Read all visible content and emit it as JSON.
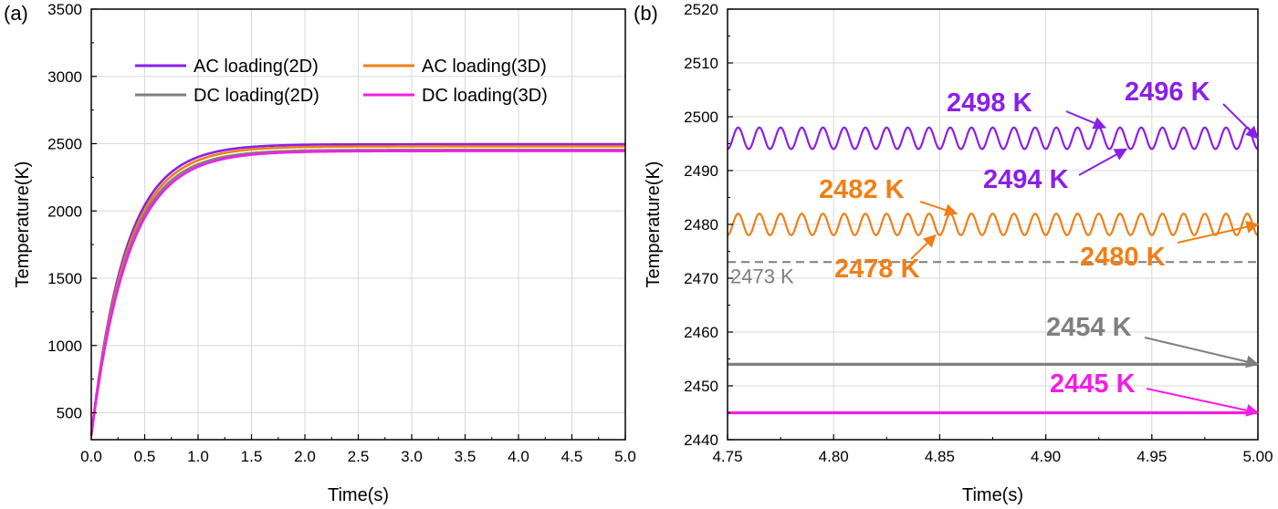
{
  "chart_data": [
    {
      "panel_label": "(a)",
      "type": "line",
      "xlabel": "Time(s)",
      "ylabel": "Temperature(K)",
      "xlim": [
        0,
        5
      ],
      "ylim": [
        300,
        3500
      ],
      "x_ticks": [
        "0.0",
        "0.5",
        "1.0",
        "1.5",
        "2.0",
        "2.5",
        "3.0",
        "3.5",
        "4.0",
        "4.5",
        "5.0"
      ],
      "y_ticks": [
        "500",
        "1000",
        "1500",
        "2000",
        "2500",
        "3000",
        "3500"
      ],
      "grid": true,
      "legend_position": "top-center",
      "series": [
        {
          "name": "AC loading(2D)",
          "color": "#8B1FE8",
          "start": 330,
          "steady": 2496,
          "tau": 0.32
        },
        {
          "name": "AC loading(3D)",
          "color": "#F07F16",
          "start": 330,
          "steady": 2480,
          "tau": 0.33
        },
        {
          "name": "DC loading(2D)",
          "color": "#7F7F7F",
          "start": 330,
          "steady": 2454,
          "tau": 0.335
        },
        {
          "name": "DC loading(3D)",
          "color": "#F21EE6",
          "start": 330,
          "steady": 2445,
          "tau": 0.345
        }
      ]
    },
    {
      "panel_label": "(b)",
      "type": "line",
      "xlabel": "Time(s)",
      "ylabel": "Temperature(K)",
      "xlim": [
        4.75,
        5.0
      ],
      "ylim": [
        2440,
        2520
      ],
      "x_ticks": [
        "4.75",
        "4.80",
        "4.85",
        "4.90",
        "4.95",
        "5.00"
      ],
      "y_ticks": [
        "2440",
        "2450",
        "2460",
        "2470",
        "2480",
        "2490",
        "2500",
        "2510",
        "2520"
      ],
      "grid": true,
      "series": [
        {
          "name": "AC loading(2D)",
          "color": "#8B1FE8",
          "type": "oscillation",
          "mean": 2496,
          "min": 2494,
          "max": 2498,
          "cycles": 25,
          "end_value": 2496
        },
        {
          "name": "AC loading(3D)",
          "color": "#F07F16",
          "type": "oscillation",
          "mean": 2480,
          "min": 2478,
          "max": 2482,
          "cycles": 25,
          "end_value": 2480
        },
        {
          "name": "DC loading(2D)",
          "color": "#7F7F7F",
          "type": "constant",
          "value": 2454
        },
        {
          "name": "DC loading(3D)",
          "color": "#F21EE6",
          "type": "constant",
          "value": 2445
        }
      ],
      "reference_line": {
        "value": 2473,
        "label": "2473 K",
        "color": "#7F7F7F",
        "style": "dashed"
      },
      "annotations": [
        {
          "text": "2498 K",
          "color": "#8B1FE8",
          "target": [
            4.928,
            2498
          ]
        },
        {
          "text": "2496 K",
          "color": "#8B1FE8",
          "target": [
            5.0,
            2496
          ]
        },
        {
          "text": "2494 K",
          "color": "#8B1FE8",
          "target": [
            4.938,
            2494
          ]
        },
        {
          "text": "2482 K",
          "color": "#F07F16",
          "target": [
            4.858,
            2482
          ]
        },
        {
          "text": "2478 K",
          "color": "#F07F16",
          "target": [
            4.848,
            2478
          ]
        },
        {
          "text": "2480 K",
          "color": "#F07F16",
          "target": [
            5.0,
            2480
          ]
        },
        {
          "text": "2454 K",
          "color": "#7F7F7F",
          "target": [
            5.0,
            2454
          ]
        },
        {
          "text": "2445 K",
          "color": "#F21EE6",
          "target": [
            5.0,
            2445
          ]
        }
      ]
    }
  ]
}
